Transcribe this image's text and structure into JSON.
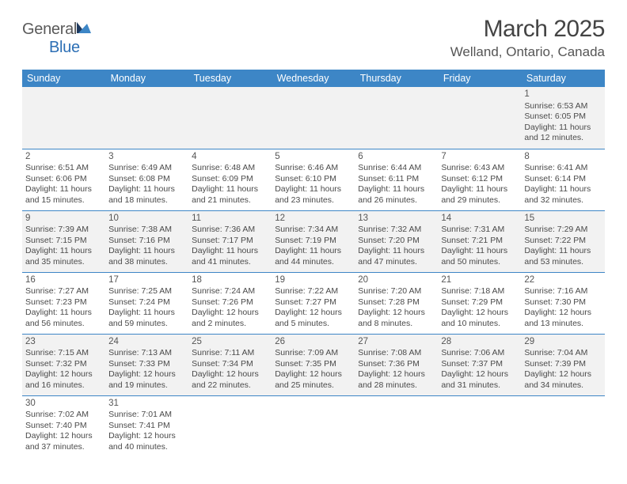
{
  "logo": {
    "text1": "General",
    "text2": "Blue"
  },
  "title": "March 2025",
  "location": "Welland, Ontario, Canada",
  "colors": {
    "header_bg": "#3d86c6",
    "header_fg": "#ffffff",
    "row_alt": "#f2f2f2",
    "text": "#4a4a4a",
    "rule": "#3d86c6"
  },
  "weekdays": [
    "Sunday",
    "Monday",
    "Tuesday",
    "Wednesday",
    "Thursday",
    "Friday",
    "Saturday"
  ],
  "weeks": [
    [
      null,
      null,
      null,
      null,
      null,
      null,
      {
        "d": "1",
        "sr": "6:53 AM",
        "ss": "6:05 PM",
        "dl": "11 hours and 12 minutes."
      }
    ],
    [
      {
        "d": "2",
        "sr": "6:51 AM",
        "ss": "6:06 PM",
        "dl": "11 hours and 15 minutes."
      },
      {
        "d": "3",
        "sr": "6:49 AM",
        "ss": "6:08 PM",
        "dl": "11 hours and 18 minutes."
      },
      {
        "d": "4",
        "sr": "6:48 AM",
        "ss": "6:09 PM",
        "dl": "11 hours and 21 minutes."
      },
      {
        "d": "5",
        "sr": "6:46 AM",
        "ss": "6:10 PM",
        "dl": "11 hours and 23 minutes."
      },
      {
        "d": "6",
        "sr": "6:44 AM",
        "ss": "6:11 PM",
        "dl": "11 hours and 26 minutes."
      },
      {
        "d": "7",
        "sr": "6:43 AM",
        "ss": "6:12 PM",
        "dl": "11 hours and 29 minutes."
      },
      {
        "d": "8",
        "sr": "6:41 AM",
        "ss": "6:14 PM",
        "dl": "11 hours and 32 minutes."
      }
    ],
    [
      {
        "d": "9",
        "sr": "7:39 AM",
        "ss": "7:15 PM",
        "dl": "11 hours and 35 minutes."
      },
      {
        "d": "10",
        "sr": "7:38 AM",
        "ss": "7:16 PM",
        "dl": "11 hours and 38 minutes."
      },
      {
        "d": "11",
        "sr": "7:36 AM",
        "ss": "7:17 PM",
        "dl": "11 hours and 41 minutes."
      },
      {
        "d": "12",
        "sr": "7:34 AM",
        "ss": "7:19 PM",
        "dl": "11 hours and 44 minutes."
      },
      {
        "d": "13",
        "sr": "7:32 AM",
        "ss": "7:20 PM",
        "dl": "11 hours and 47 minutes."
      },
      {
        "d": "14",
        "sr": "7:31 AM",
        "ss": "7:21 PM",
        "dl": "11 hours and 50 minutes."
      },
      {
        "d": "15",
        "sr": "7:29 AM",
        "ss": "7:22 PM",
        "dl": "11 hours and 53 minutes."
      }
    ],
    [
      {
        "d": "16",
        "sr": "7:27 AM",
        "ss": "7:23 PM",
        "dl": "11 hours and 56 minutes."
      },
      {
        "d": "17",
        "sr": "7:25 AM",
        "ss": "7:24 PM",
        "dl": "11 hours and 59 minutes."
      },
      {
        "d": "18",
        "sr": "7:24 AM",
        "ss": "7:26 PM",
        "dl": "12 hours and 2 minutes."
      },
      {
        "d": "19",
        "sr": "7:22 AM",
        "ss": "7:27 PM",
        "dl": "12 hours and 5 minutes."
      },
      {
        "d": "20",
        "sr": "7:20 AM",
        "ss": "7:28 PM",
        "dl": "12 hours and 8 minutes."
      },
      {
        "d": "21",
        "sr": "7:18 AM",
        "ss": "7:29 PM",
        "dl": "12 hours and 10 minutes."
      },
      {
        "d": "22",
        "sr": "7:16 AM",
        "ss": "7:30 PM",
        "dl": "12 hours and 13 minutes."
      }
    ],
    [
      {
        "d": "23",
        "sr": "7:15 AM",
        "ss": "7:32 PM",
        "dl": "12 hours and 16 minutes."
      },
      {
        "d": "24",
        "sr": "7:13 AM",
        "ss": "7:33 PM",
        "dl": "12 hours and 19 minutes."
      },
      {
        "d": "25",
        "sr": "7:11 AM",
        "ss": "7:34 PM",
        "dl": "12 hours and 22 minutes."
      },
      {
        "d": "26",
        "sr": "7:09 AM",
        "ss": "7:35 PM",
        "dl": "12 hours and 25 minutes."
      },
      {
        "d": "27",
        "sr": "7:08 AM",
        "ss": "7:36 PM",
        "dl": "12 hours and 28 minutes."
      },
      {
        "d": "28",
        "sr": "7:06 AM",
        "ss": "7:37 PM",
        "dl": "12 hours and 31 minutes."
      },
      {
        "d": "29",
        "sr": "7:04 AM",
        "ss": "7:39 PM",
        "dl": "12 hours and 34 minutes."
      }
    ],
    [
      {
        "d": "30",
        "sr": "7:02 AM",
        "ss": "7:40 PM",
        "dl": "12 hours and 37 minutes."
      },
      {
        "d": "31",
        "sr": "7:01 AM",
        "ss": "7:41 PM",
        "dl": "12 hours and 40 minutes."
      },
      null,
      null,
      null,
      null,
      null
    ]
  ],
  "labels": {
    "sunrise": "Sunrise: ",
    "sunset": "Sunset: ",
    "daylight": "Daylight: "
  }
}
